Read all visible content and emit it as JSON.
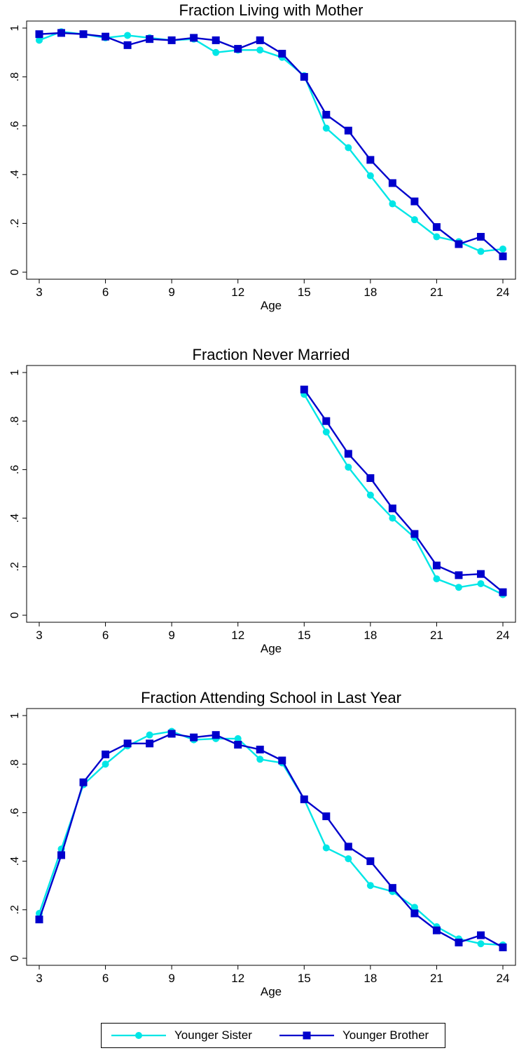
{
  "charts": [
    {
      "type": "line",
      "title": "Fraction Living with Mother",
      "xlabel": "Age",
      "ylabel": "",
      "xlim": [
        3,
        24
      ],
      "ylim": [
        0,
        1
      ],
      "xticks": [
        3,
        6,
        9,
        12,
        15,
        18,
        21,
        24
      ],
      "yticks": [
        0,
        0.2,
        0.4,
        0.6,
        0.8,
        1
      ],
      "ytick_labels": [
        "0",
        ".2",
        ".4",
        ".6",
        ".8",
        "1"
      ],
      "grid": false,
      "series": [
        {
          "name": "Younger Sister",
          "x": [
            3,
            4,
            5,
            6,
            7,
            8,
            9,
            10,
            11,
            12,
            13,
            14,
            15,
            16,
            17,
            18,
            19,
            20,
            21,
            22,
            23,
            24
          ],
          "values": [
            0.95,
            0.985,
            0.975,
            0.96,
            0.97,
            0.96,
            0.95,
            0.955,
            0.9,
            0.91,
            0.91,
            0.88,
            0.805,
            0.59,
            0.51,
            0.395,
            0.28,
            0.215,
            0.145,
            0.125,
            0.085,
            0.095
          ]
        },
        {
          "name": "Younger Brother",
          "x": [
            3,
            4,
            5,
            6,
            7,
            8,
            9,
            10,
            11,
            12,
            13,
            14,
            15,
            16,
            17,
            18,
            19,
            20,
            21,
            22,
            23,
            24
          ],
          "values": [
            0.975,
            0.98,
            0.975,
            0.965,
            0.93,
            0.955,
            0.95,
            0.96,
            0.95,
            0.915,
            0.95,
            0.895,
            0.8,
            0.645,
            0.58,
            0.46,
            0.365,
            0.29,
            0.185,
            0.115,
            0.145,
            0.065
          ]
        }
      ]
    },
    {
      "type": "line",
      "title": "Fraction Never Married",
      "xlabel": "Age",
      "ylabel": "",
      "xlim": [
        3,
        24
      ],
      "ylim": [
        0,
        1
      ],
      "xticks": [
        3,
        6,
        9,
        12,
        15,
        18,
        21,
        24
      ],
      "yticks": [
        0,
        0.2,
        0.4,
        0.6,
        0.8,
        1
      ],
      "ytick_labels": [
        "0",
        ".2",
        ".4",
        ".6",
        ".8",
        "1"
      ],
      "grid": false,
      "series": [
        {
          "name": "Younger Sister",
          "x": [
            15,
            16,
            17,
            18,
            19,
            20,
            21,
            22,
            23,
            24
          ],
          "values": [
            0.91,
            0.755,
            0.61,
            0.495,
            0.4,
            0.32,
            0.15,
            0.115,
            0.13,
            0.085
          ]
        },
        {
          "name": "Younger Brother",
          "x": [
            15,
            16,
            17,
            18,
            19,
            20,
            21,
            22,
            23,
            24
          ],
          "values": [
            0.93,
            0.8,
            0.665,
            0.565,
            0.44,
            0.335,
            0.205,
            0.165,
            0.17,
            0.095
          ]
        }
      ]
    },
    {
      "type": "line",
      "title": "Fraction Attending School in Last Year",
      "xlabel": "Age",
      "ylabel": "",
      "xlim": [
        3,
        24
      ],
      "ylim": [
        0,
        1
      ],
      "xticks": [
        3,
        6,
        9,
        12,
        15,
        18,
        21,
        24
      ],
      "yticks": [
        0,
        0.2,
        0.4,
        0.6,
        0.8,
        1
      ],
      "ytick_labels": [
        "0",
        ".2",
        ".4",
        ".6",
        ".8",
        "1"
      ],
      "grid": false,
      "series": [
        {
          "name": "Younger Sister",
          "x": [
            3,
            4,
            5,
            6,
            7,
            8,
            9,
            10,
            11,
            12,
            13,
            14,
            15,
            16,
            17,
            18,
            19,
            20,
            21,
            22,
            23,
            24
          ],
          "values": [
            0.185,
            0.45,
            0.715,
            0.8,
            0.875,
            0.92,
            0.935,
            0.9,
            0.905,
            0.905,
            0.82,
            0.805,
            0.655,
            0.455,
            0.41,
            0.3,
            0.275,
            0.21,
            0.13,
            0.08,
            0.06,
            0.055
          ]
        },
        {
          "name": "Younger Brother",
          "x": [
            3,
            4,
            5,
            6,
            7,
            8,
            9,
            10,
            11,
            12,
            13,
            14,
            15,
            16,
            17,
            18,
            19,
            20,
            21,
            22,
            23,
            24
          ],
          "values": [
            0.16,
            0.425,
            0.725,
            0.84,
            0.885,
            0.885,
            0.925,
            0.91,
            0.92,
            0.88,
            0.86,
            0.815,
            0.655,
            0.585,
            0.46,
            0.4,
            0.29,
            0.185,
            0.115,
            0.065,
            0.095,
            0.045
          ]
        }
      ]
    }
  ],
  "legend": {
    "placement": "bottom",
    "items": [
      {
        "label": "Younger Sister",
        "color": "#00e6e6",
        "marker": "circle"
      },
      {
        "label": "Younger Brother",
        "color": "#0000cc",
        "marker": "square"
      }
    ]
  },
  "colors": {
    "younger_sister": "#00e6e6",
    "younger_brother": "#0000cc",
    "axis": "#000000"
  }
}
